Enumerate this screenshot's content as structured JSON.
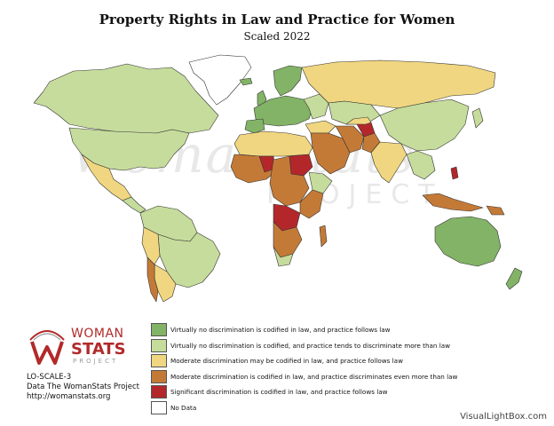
{
  "title": "Property Rights in Law and Practice for Women",
  "subtitle": "Scaled 2022",
  "colors": {
    "level_1": "#82b366",
    "level_2": "#c6dc9c",
    "level_3": "#f0d680",
    "level_4": "#c47a37",
    "level_5": "#b3272b",
    "no_data": "#ffffff",
    "border": "#333333"
  },
  "legend": [
    {
      "label": "Virtually no discrimination is codified in law, and practice follows law",
      "color": "#82b366"
    },
    {
      "label": "Virtually no discrimination is codified, and practice tends to discriminate more than law",
      "color": "#c6dc9c"
    },
    {
      "label": "Moderate discrimination may be codified in law, and practice follows law",
      "color": "#f0d680"
    },
    {
      "label": "Moderate discrimination is codified in law, and practice discriminates even more than law",
      "color": "#c47a37"
    },
    {
      "label": "Significant discrimination is codified in law, and practice follows law",
      "color": "#b3272b"
    },
    {
      "label": "No Data",
      "color": "#ffffff"
    }
  ],
  "logo": {
    "line1": "WOMAN",
    "line2": "STATS",
    "line3": "PROJECT"
  },
  "info": {
    "code": "LO-SCALE-3",
    "source": "Data The WomanStats Project",
    "url": "http://womanstats.org"
  },
  "credit": "VisualLightBox.com"
}
